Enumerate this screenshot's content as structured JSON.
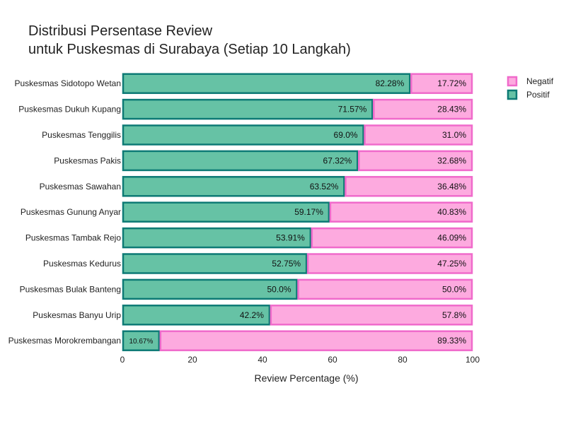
{
  "chart_data": {
    "type": "bar",
    "orientation": "horizontal",
    "stacked": true,
    "title": [
      "Distribusi Persentase Review",
      "untuk Puskesmas di Surabaya (Setiap 10 Langkah)"
    ],
    "xlabel": "Review Percentage (%)",
    "ylabel": "",
    "xlim": [
      0,
      100
    ],
    "xticks": [
      "0",
      "20",
      "40",
      "60",
      "80",
      "100"
    ],
    "grid": false,
    "legend_position": "top-right",
    "categories": [
      "Puskesmas Sidotopo Wetan",
      "Puskesmas Dukuh Kupang",
      "Puskesmas Tenggilis",
      "Puskesmas Pakis",
      "Puskesmas Sawahan",
      "Puskesmas Gunung Anyar",
      "Puskesmas Tambak Rejo",
      "Puskesmas Kedurus",
      "Puskesmas Bulak Banteng",
      "Puskesmas Banyu Urip",
      "Puskesmas Morokrembangan"
    ],
    "series": [
      {
        "name": "Positif",
        "color": "#66c2a5",
        "border": "#0d7a75",
        "values": [
          82.28,
          71.57,
          69.0,
          67.32,
          63.52,
          59.17,
          53.91,
          52.75,
          50.0,
          42.2,
          10.67
        ],
        "labels": [
          "82.28%",
          "71.57%",
          "69.0%",
          "67.32%",
          "63.52%",
          "59.17%",
          "53.91%",
          "52.75%",
          "50.0%",
          "42.2%",
          "10.67%"
        ]
      },
      {
        "name": "Negatif",
        "color": "#fdaadf",
        "border": "#f06acb",
        "values": [
          17.72,
          28.43,
          31.0,
          32.68,
          36.48,
          40.83,
          46.09,
          47.25,
          50.0,
          57.8,
          89.33
        ],
        "labels": [
          "17.72%",
          "28.43%",
          "31.0%",
          "32.68%",
          "36.48%",
          "40.83%",
          "46.09%",
          "47.25%",
          "50.0%",
          "57.8%",
          "89.33%"
        ]
      }
    ],
    "legend": [
      "Negatif",
      "Positif"
    ]
  }
}
